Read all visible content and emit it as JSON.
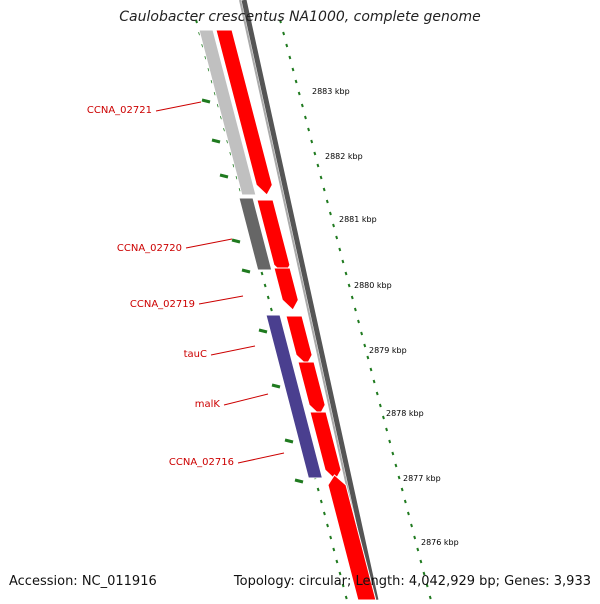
{
  "title": "Caulobacter crescentus NA1000, complete genome",
  "footer": {
    "accession": "Accession: NC_011916",
    "summary": "Topology: circular; Length: 4,042,929 bp; Genes: 3,933"
  },
  "colors": {
    "forward_cds": "#ff0000",
    "reverse_light": "#c0c0c0",
    "reverse_dark": "#666666",
    "reverse_purple": "#4a3f8f",
    "ticks": "#1f7a1f",
    "labels": "#cc0000",
    "backbone": "#777777"
  },
  "gene_labels": [
    {
      "text": "CCNA_02721"
    },
    {
      "text": "CCNA_02720"
    },
    {
      "text": "CCNA_02719"
    },
    {
      "text": "tauC"
    },
    {
      "text": "malK"
    },
    {
      "text": "CCNA_02716"
    }
  ],
  "scale_labels": [
    {
      "text": "2883 kbp"
    },
    {
      "text": "2882 kbp"
    },
    {
      "text": "2881 kbp"
    },
    {
      "text": "2880 kbp"
    },
    {
      "text": "2879 kbp"
    },
    {
      "text": "2878 kbp"
    },
    {
      "text": "2877 kbp"
    },
    {
      "text": "2876 kbp"
    }
  ]
}
